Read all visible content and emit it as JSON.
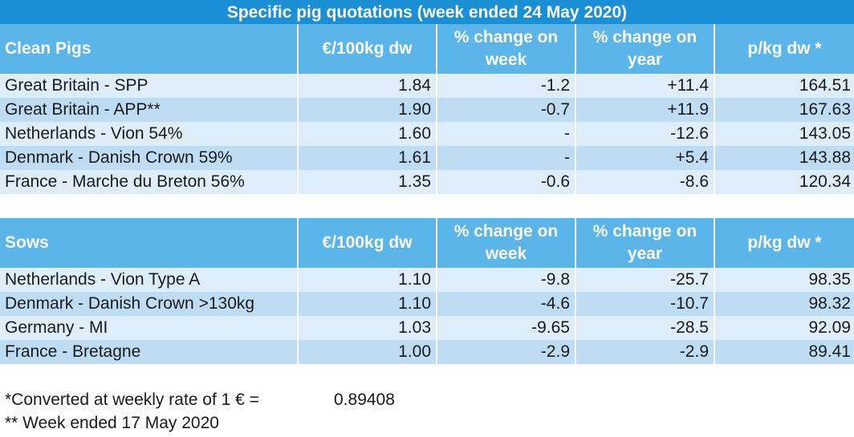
{
  "title": "Specific pig quotations (week ended 24 May 2020)",
  "columns": [
    "€/100kg dw",
    "% change on week",
    "% change on year",
    "p/kg dw *"
  ],
  "clean_pigs": {
    "heading": "Clean Pigs",
    "rows": [
      {
        "name": "Great Britain - SPP",
        "eur": "1.84",
        "week": "-1.2",
        "year": "+11.4",
        "pkg": "164.51"
      },
      {
        "name": "Great Britain - APP**",
        "eur": "1.90",
        "week": "-0.7",
        "year": "+11.9",
        "pkg": "167.63"
      },
      {
        "name": "Netherlands - Vion 54%",
        "eur": "1.60",
        "week": "-",
        "year": "-12.6",
        "pkg": "143.05"
      },
      {
        "name": "Denmark - Danish Crown 59%",
        "eur": "1.61",
        "week": "-",
        "year": "+5.4",
        "pkg": "143.88"
      },
      {
        "name": "France - Marche du Breton 56%",
        "eur": "1.35",
        "week": "-0.6",
        "year": "-8.6",
        "pkg": "120.34"
      }
    ]
  },
  "sows": {
    "heading": "Sows",
    "rows": [
      {
        "name": "Netherlands - Vion Type A",
        "eur": "1.10",
        "week": "-9.8",
        "year": "-25.7",
        "pkg": "98.35"
      },
      {
        "name": "Denmark - Danish Crown >130kg",
        "eur": "1.10",
        "week": "-4.6",
        "year": "-10.7",
        "pkg": "98.32"
      },
      {
        "name": "Germany - MI",
        "eur": "1.03",
        "week": "-9.65",
        "year": "-28.5",
        "pkg": "92.09"
      },
      {
        "name": "France - Bretagne",
        "eur": "1.00",
        "week": "-2.9",
        "year": "-2.9",
        "pkg": "89.41"
      }
    ]
  },
  "footnotes": {
    "converted_label": "*Converted at weekly rate of 1 € =",
    "converted_rate": "0.89408",
    "week_note": "** Week ended 17 May 2020"
  }
}
